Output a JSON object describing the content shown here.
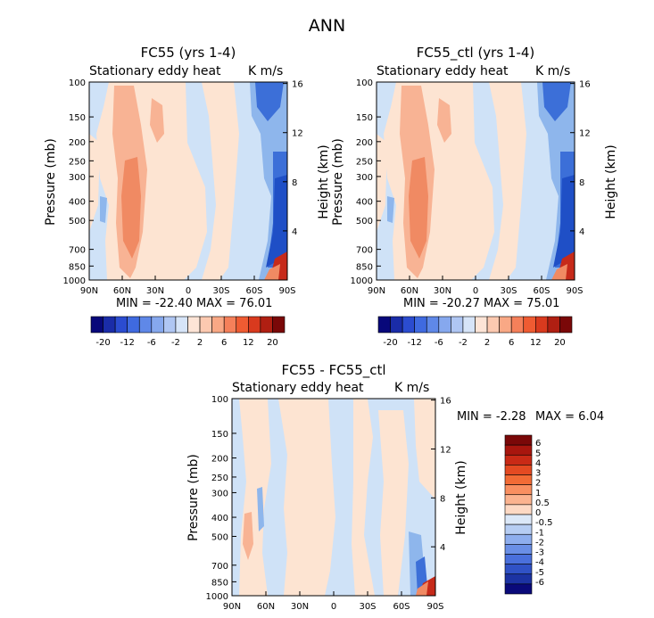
{
  "page_title": "ANN",
  "chart_data": [
    {
      "type": "heatmap",
      "title": "FC55 (yrs 1-4)",
      "variable": "Stationary eddy heat",
      "units": "K m/s",
      "ylabel": "Pressure (mb)",
      "ylabel_right": "Height (km)",
      "x_ticks": [
        "90N",
        "60N",
        "30N",
        "0",
        "30S",
        "60S",
        "90S"
      ],
      "x_range": [
        90,
        -90
      ],
      "y_ticks": [
        100,
        150,
        200,
        250,
        300,
        400,
        500,
        700,
        850,
        1000
      ],
      "y_range": [
        100,
        1000
      ],
      "height_ticks": [
        4,
        8,
        12,
        16
      ],
      "min_label": "MIN = -22.40",
      "max_label": "MAX = 76.01",
      "min": -22.4,
      "max": 76.01,
      "colorbar_labels": [
        "-20",
        "-12",
        "-6",
        "-2",
        "2",
        "6",
        "12",
        "20"
      ],
      "colorbar_orientation": "horizontal"
    },
    {
      "type": "heatmap",
      "title": "FC55_ctl (yrs 1-4)",
      "variable": "Stationary eddy heat",
      "units": "K m/s",
      "ylabel": "Pressure (mb)",
      "ylabel_right": "Height (km)",
      "x_ticks": [
        "90N",
        "60N",
        "30N",
        "0",
        "30S",
        "60S",
        "90S"
      ],
      "x_range": [
        90,
        -90
      ],
      "y_ticks": [
        100,
        150,
        200,
        250,
        300,
        400,
        500,
        700,
        850,
        1000
      ],
      "y_range": [
        100,
        1000
      ],
      "height_ticks": [
        4,
        8,
        12,
        16
      ],
      "min_label": "MIN = -20.27",
      "max_label": "MAX = 75.01",
      "min": -20.27,
      "max": 75.01,
      "colorbar_labels": [
        "-20",
        "-12",
        "-6",
        "-2",
        "2",
        "6",
        "12",
        "20"
      ],
      "colorbar_orientation": "horizontal"
    },
    {
      "type": "heatmap",
      "title": "FC55 - FC55_ctl",
      "variable": "Stationary eddy heat",
      "units": "K m/s",
      "ylabel": "Pressure (mb)",
      "ylabel_right": "Height (km)",
      "x_ticks": [
        "90N",
        "60N",
        "30N",
        "0",
        "30S",
        "60S",
        "90S"
      ],
      "x_range": [
        90,
        -90
      ],
      "y_ticks": [
        100,
        150,
        200,
        250,
        300,
        400,
        500,
        700,
        850,
        1000
      ],
      "y_range": [
        100,
        1000
      ],
      "height_ticks": [
        4,
        8,
        12,
        16
      ],
      "min_label": "MIN = -2.28",
      "max_label": "MAX = 6.04",
      "min": -2.28,
      "max": 6.04,
      "colorbar_labels": [
        "6",
        "5",
        "4",
        "3",
        "2",
        "1",
        "0.5",
        "0",
        "-0.5",
        "-1",
        "-2",
        "-3",
        "-4",
        "-5",
        "-6"
      ],
      "colorbar_orientation": "vertical"
    }
  ],
  "colors": {
    "cbar16": [
      "#08087a",
      "#1a2ca8",
      "#2b4cd0",
      "#3f6ae0",
      "#5f88e8",
      "#86a8ee",
      "#afc6f3",
      "#d6e4f8",
      "#fde4d6",
      "#fcc9b0",
      "#f9a885",
      "#f5805a",
      "#ef5b32",
      "#d93a1e",
      "#b01f12",
      "#7a0808"
    ],
    "cbar16_diff": [
      "#7a0808",
      "#a8160e",
      "#c92a16",
      "#e44a22",
      "#f26b35",
      "#f98f60",
      "#fbb38f",
      "#fdd9c4",
      "#dbe8f8",
      "#b6cdf3",
      "#8eaeee",
      "#6a8fe6",
      "#4a70dc",
      "#3052c6",
      "#1c33a3",
      "#0a0a7a"
    ],
    "blue_light": "#cfe2f7",
    "blue_mid": "#8eb6ec",
    "blue_dark": "#3c6fd8",
    "blue_deep": "#1f4fc6",
    "orange_light": "#fde4d2",
    "orange_mid": "#f8b394",
    "orange_dark": "#f08a63",
    "red_deep": "#c62a1a"
  }
}
